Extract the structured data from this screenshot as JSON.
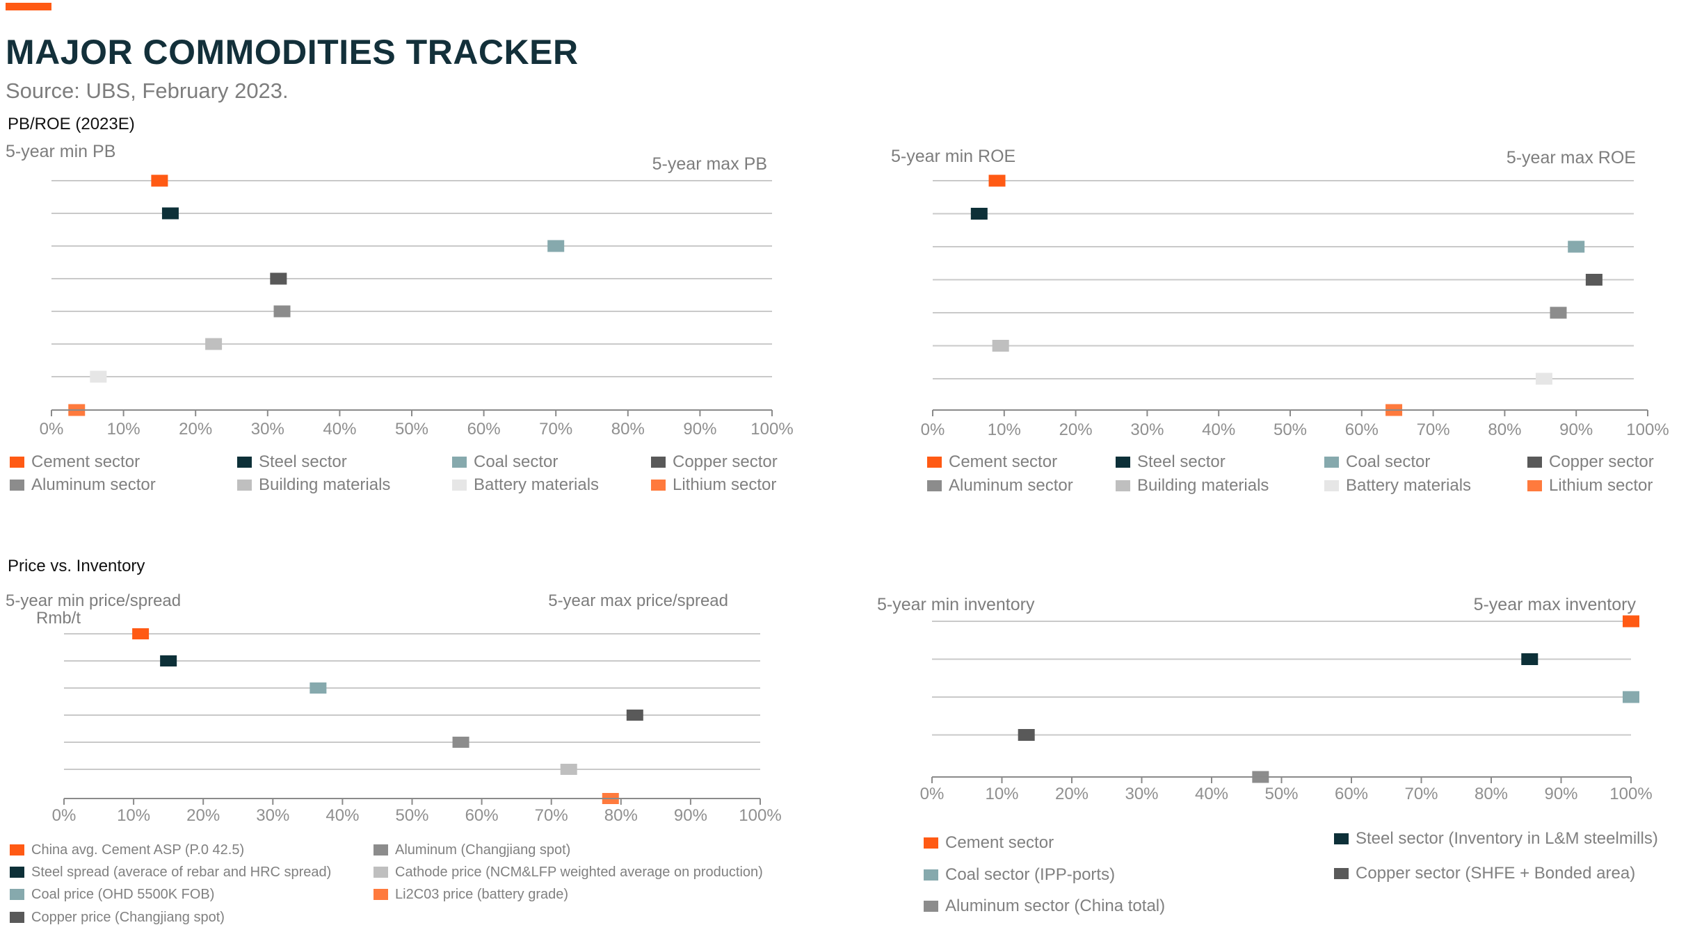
{
  "header": {
    "accent_color": "#ff5a14",
    "title": "MAJOR COMMODITIES TRACKER",
    "source": "Source: UBS, February 2023."
  },
  "sections": {
    "pbroe_label": "PB/ROE (2023E)",
    "price_inventory_label": "Price vs. Inventory"
  },
  "chart_data": [
    {
      "id": "pb",
      "type": "scatter",
      "xlim": [
        0,
        100
      ],
      "x_unit": "%",
      "tick_labels": [
        "0%",
        "10%",
        "20%",
        "30%",
        "40%",
        "50%",
        "60%",
        "70%",
        "80%",
        "90%",
        "100%"
      ],
      "min_label": "5-year min PB",
      "max_label": "5-year max PB",
      "series": [
        {
          "name": "Cement sector",
          "value": 15,
          "color": "#ff5a14"
        },
        {
          "name": "Steel sector",
          "value": 16.5,
          "color": "#0d3038"
        },
        {
          "name": "Coal sector",
          "value": 70,
          "color": "#86a9ad"
        },
        {
          "name": "Copper sector",
          "value": 31.5,
          "color": "#595959"
        },
        {
          "name": "Aluminum sector",
          "value": 32,
          "color": "#8c8c8c"
        },
        {
          "name": "Building materials",
          "value": 22.5,
          "color": "#bfbfbf"
        },
        {
          "name": "Battery materials",
          "value": 6.5,
          "color": "#e6e6e6"
        },
        {
          "name": "Lithium sector",
          "value": 3.5,
          "color": "#ff7a3d"
        }
      ],
      "grid": true,
      "legend_position": "bottom"
    },
    {
      "id": "roe",
      "type": "scatter",
      "xlim": [
        0,
        100
      ],
      "x_unit": "%",
      "tick_labels": [
        "0%",
        "10%",
        "20%",
        "30%",
        "40%",
        "50%",
        "60%",
        "70%",
        "80%",
        "90%",
        "100%"
      ],
      "min_label": "5-year min ROE",
      "max_label": "5-year max ROE",
      "series": [
        {
          "name": "Cement sector",
          "value": 9,
          "color": "#ff5a14"
        },
        {
          "name": "Steel sector",
          "value": 6.5,
          "color": "#0d3038"
        },
        {
          "name": "Coal sector",
          "value": 90,
          "color": "#86a9ad"
        },
        {
          "name": "Copper sector",
          "value": 92.5,
          "color": "#595959"
        },
        {
          "name": "Aluminum sector",
          "value": 87.5,
          "color": "#8c8c8c"
        },
        {
          "name": "Building materials",
          "value": 9.5,
          "color": "#bfbfbf"
        },
        {
          "name": "Battery materials",
          "value": 85.5,
          "color": "#e6e6e6"
        },
        {
          "name": "Lithium sector",
          "value": 64.5,
          "color": "#ff7a3d"
        }
      ],
      "grid": true,
      "legend_position": "bottom"
    },
    {
      "id": "price",
      "type": "scatter",
      "xlim": [
        0,
        100
      ],
      "x_unit": "%",
      "tick_labels": [
        "0%",
        "10%",
        "20%",
        "30%",
        "40%",
        "50%",
        "60%",
        "70%",
        "80%",
        "90%",
        "100%"
      ],
      "min_label": "5-year min price/spread",
      "min_sublabel": "Rmb/t",
      "max_label": "5-year max price/spread",
      "series": [
        {
          "name": "China avg. Cement ASP (P.0 42.5)",
          "value": 11,
          "color": "#ff5a14"
        },
        {
          "name": "Steel spread (averace of rebar and HRC spread)",
          "value": 15,
          "color": "#0d3038"
        },
        {
          "name": "Coal price (OHD 5500K FOB)",
          "value": 36.5,
          "color": "#86a9ad"
        },
        {
          "name": "Copper price (Changjiang spot)",
          "value": 82,
          "color": "#595959"
        },
        {
          "name": "Aluminum (Changjiang spot)",
          "value": 57,
          "color": "#8c8c8c"
        },
        {
          "name": "Cathode price (NCM&LFP weighted average on production)",
          "value": 72.5,
          "color": "#bfbfbf"
        },
        {
          "name": "Li2C03 price (battery grade)",
          "value": 78.5,
          "color": "#ff7a3d"
        }
      ],
      "grid": true,
      "legend_position": "bottom"
    },
    {
      "id": "inventory",
      "type": "scatter",
      "xlim": [
        0,
        100
      ],
      "x_unit": "%",
      "tick_labels": [
        "0%",
        "10%",
        "20%",
        "30%",
        "40%",
        "50%",
        "60%",
        "70%",
        "80%",
        "90%",
        "100%"
      ],
      "min_label": "5-year min inventory",
      "max_label": "5-year max inventory",
      "series": [
        {
          "name": "Cement sector",
          "value": 100,
          "color": "#ff5a14"
        },
        {
          "name": "Steel sector (Inventory in L&M steelmills)",
          "value": 85.5,
          "color": "#0d3038"
        },
        {
          "name": "Coal sector (IPP-ports)",
          "value": 100,
          "color": "#86a9ad"
        },
        {
          "name": "Copper sector (SHFE + Bonded area)",
          "value": 13.5,
          "color": "#595959"
        },
        {
          "name": "Aluminum sector (China total)",
          "value": 47,
          "color": "#8c8c8c"
        }
      ],
      "grid": true,
      "legend_position": "bottom"
    }
  ]
}
